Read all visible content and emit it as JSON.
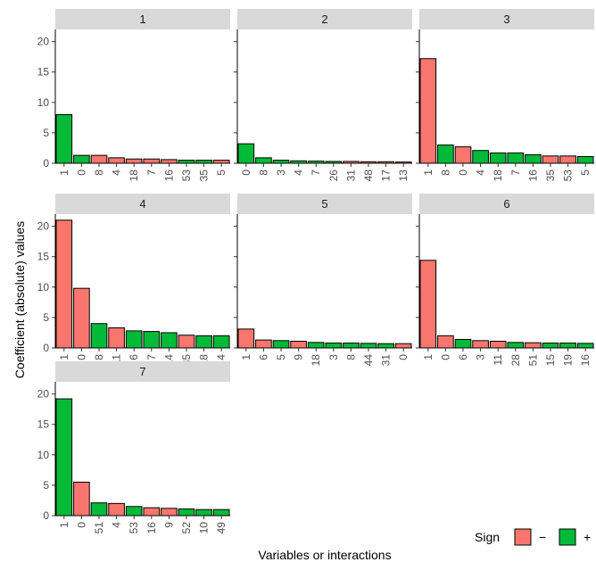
{
  "chart_data": {
    "type": "bar",
    "faceted": true,
    "xlabel": "Variables or interactions",
    "ylabel": "Coefficient (absolute) values",
    "ylim": [
      0,
      22
    ],
    "yticks": [
      0,
      5,
      10,
      15,
      20
    ],
    "grid": false,
    "legend": {
      "title": "Sign",
      "placement": "bottom-right",
      "entries": [
        {
          "label": "−",
          "sign": "-",
          "color": "#F8766D"
        },
        {
          "label": "+",
          "sign": "+",
          "color": "#00BA38"
        }
      ]
    },
    "colors": {
      "negative": "#F8766D",
      "positive": "#00BA38",
      "strip": "#D9D9D9"
    },
    "facets": [
      {
        "label": "1",
        "categories": [
          "1",
          "0",
          "8",
          "4",
          "18",
          "7",
          "16",
          "53",
          "35",
          "5"
        ],
        "values": [
          8.0,
          1.3,
          1.3,
          0.9,
          0.7,
          0.7,
          0.6,
          0.5,
          0.5,
          0.5
        ],
        "signs": [
          "+",
          "+",
          "-",
          "-",
          "-",
          "-",
          "-",
          "+",
          "+",
          "-"
        ]
      },
      {
        "label": "2",
        "categories": [
          "0",
          "8",
          "3",
          "4",
          "7",
          "26",
          "31",
          "48",
          "17",
          "13"
        ],
        "values": [
          3.2,
          0.9,
          0.5,
          0.4,
          0.35,
          0.3,
          0.3,
          0.25,
          0.25,
          0.2
        ],
        "signs": [
          "+",
          "+",
          "+",
          "+",
          "+",
          "+",
          "-",
          "-",
          "-",
          "-"
        ]
      },
      {
        "label": "3",
        "categories": [
          "1",
          "8",
          "0",
          "4",
          "18",
          "7",
          "16",
          "35",
          "53",
          "5"
        ],
        "values": [
          17.2,
          3.0,
          2.7,
          2.1,
          1.7,
          1.7,
          1.4,
          1.2,
          1.2,
          1.1
        ],
        "signs": [
          "-",
          "+",
          "-",
          "+",
          "+",
          "+",
          "+",
          "-",
          "-",
          "+"
        ]
      },
      {
        "label": "4",
        "categories": [
          "1",
          "0",
          "8",
          "11",
          "6",
          "7",
          "14",
          "35",
          "18",
          "4"
        ],
        "values": [
          21.0,
          9.8,
          4.0,
          3.3,
          2.8,
          2.7,
          2.5,
          2.1,
          2.0,
          2.0
        ],
        "signs": [
          "-",
          "-",
          "+",
          "-",
          "+",
          "+",
          "+",
          "-",
          "+",
          "+"
        ]
      },
      {
        "label": "5",
        "categories": [
          "1",
          "6",
          "5",
          "9",
          "18",
          "3",
          "8",
          "44",
          "31",
          "0"
        ],
        "values": [
          3.1,
          1.3,
          1.2,
          1.1,
          0.9,
          0.8,
          0.8,
          0.75,
          0.7,
          0.7
        ],
        "signs": [
          "-",
          "-",
          "+",
          "-",
          "+",
          "+",
          "+",
          "+",
          "+",
          "-"
        ]
      },
      {
        "label": "6",
        "categories": [
          "1",
          "0",
          "6",
          "3",
          "11",
          "28",
          "51",
          "15",
          "19",
          "16"
        ],
        "values": [
          14.4,
          2.0,
          1.4,
          1.2,
          1.1,
          0.9,
          0.85,
          0.8,
          0.8,
          0.75
        ],
        "signs": [
          "-",
          "-",
          "+",
          "-",
          "-",
          "+",
          "-",
          "+",
          "+",
          "+"
        ]
      },
      {
        "label": "7",
        "categories": [
          "1",
          "0",
          "51",
          "4",
          "53",
          "16",
          "9",
          "52",
          "10",
          "49"
        ],
        "values": [
          19.2,
          5.5,
          2.1,
          2.0,
          1.5,
          1.3,
          1.2,
          1.1,
          1.0,
          1.0
        ],
        "signs": [
          "+",
          "-",
          "+",
          "-",
          "+",
          "-",
          "-",
          "+",
          "+",
          "+"
        ]
      }
    ]
  }
}
